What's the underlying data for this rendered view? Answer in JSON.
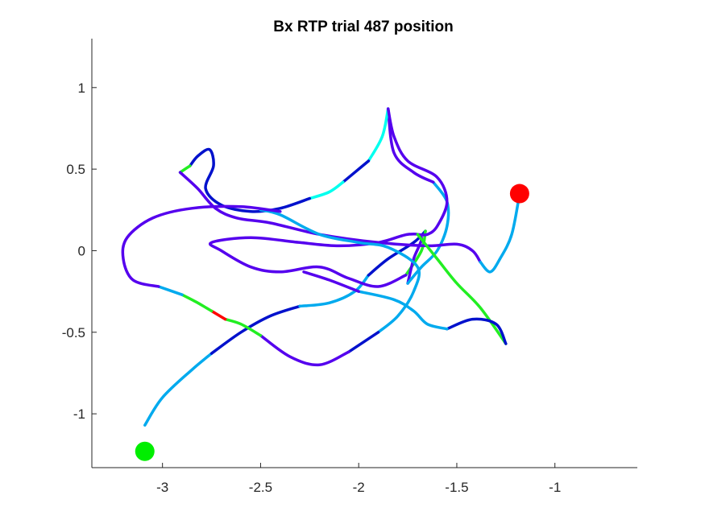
{
  "chart_data": {
    "type": "line",
    "title": "Bx  RTP trial 487 position",
    "xlabel": "",
    "ylabel": "",
    "xlim": [
      -3.36,
      -0.58
    ],
    "ylim": [
      -1.33,
      1.3
    ],
    "xticks": [
      -3,
      -2.5,
      -2,
      -1.5,
      -1
    ],
    "xtick_labels": [
      "-3",
      "-2.5",
      "-2",
      "-1.5",
      "-1"
    ],
    "yticks": [
      1,
      0.5,
      0,
      -0.5,
      -1
    ],
    "ytick_labels": [
      "1",
      "0.5",
      "0",
      "-0.5",
      "-1"
    ],
    "grid": false,
    "box": "left-bottom",
    "start_marker": {
      "x": -3.09,
      "y": -1.23,
      "color": "#00ee00"
    },
    "end_marker": {
      "x": -1.18,
      "y": 0.35,
      "color": "#ff0000"
    },
    "trajectory_segments": [
      {
        "color": "#00aaee",
        "points": [
          [
            -3.09,
            -1.07
          ],
          [
            -3.0,
            -0.9
          ],
          [
            -2.85,
            -0.73
          ],
          [
            -2.75,
            -0.63
          ]
        ]
      },
      {
        "color": "#0011cc",
        "points": [
          [
            -2.75,
            -0.63
          ],
          [
            -2.6,
            -0.5
          ],
          [
            -2.45,
            -0.4
          ],
          [
            -2.3,
            -0.34
          ]
        ]
      },
      {
        "color": "#00aaee",
        "points": [
          [
            -2.3,
            -0.34
          ],
          [
            -2.15,
            -0.32
          ],
          [
            -2.02,
            -0.25
          ],
          [
            -1.95,
            -0.15
          ]
        ]
      },
      {
        "color": "#0011cc",
        "points": [
          [
            -1.95,
            -0.15
          ],
          [
            -1.85,
            -0.05
          ],
          [
            -1.72,
            0.05
          ],
          [
            -1.66,
            0.12
          ]
        ]
      },
      {
        "color": "#22ee22",
        "points": [
          [
            -1.66,
            0.12
          ],
          [
            -1.68,
            0.0
          ],
          [
            -1.76,
            -0.15
          ]
        ]
      },
      {
        "color": "#5500ee",
        "points": [
          [
            -1.76,
            -0.15
          ],
          [
            -1.9,
            -0.22
          ],
          [
            -2.05,
            -0.17
          ],
          [
            -2.2,
            -0.1
          ],
          [
            -2.4,
            -0.13
          ],
          [
            -2.55,
            -0.1
          ],
          [
            -2.7,
            0.0
          ],
          [
            -2.75,
            0.05
          ],
          [
            -2.55,
            0.08
          ],
          [
            -2.3,
            0.05
          ],
          [
            -2.1,
            0.03
          ],
          [
            -1.9,
            0.05
          ],
          [
            -1.75,
            0.1
          ],
          [
            -1.68,
            0.08
          ],
          [
            -1.72,
            -0.05
          ],
          [
            -1.75,
            -0.2
          ]
        ]
      },
      {
        "color": "#00aaee",
        "points": [
          [
            -1.75,
            -0.2
          ],
          [
            -1.68,
            -0.1
          ],
          [
            -1.6,
            0.0
          ],
          [
            -1.55,
            0.15
          ],
          [
            -1.55,
            0.3
          ],
          [
            -1.62,
            0.42
          ]
        ]
      },
      {
        "color": "#5500ee",
        "points": [
          [
            -1.62,
            0.42
          ],
          [
            -1.72,
            0.48
          ],
          [
            -1.82,
            0.6
          ],
          [
            -1.85,
            0.87
          ]
        ]
      },
      {
        "color": "#00ffee",
        "points": [
          [
            -1.85,
            0.87
          ],
          [
            -1.88,
            0.7
          ],
          [
            -1.95,
            0.55
          ]
        ]
      },
      {
        "color": "#0011cc",
        "points": [
          [
            -1.95,
            0.55
          ],
          [
            -2.02,
            0.48
          ],
          [
            -2.08,
            0.42
          ]
        ]
      },
      {
        "color": "#00ffee",
        "points": [
          [
            -2.08,
            0.42
          ],
          [
            -2.15,
            0.36
          ],
          [
            -2.25,
            0.32
          ]
        ]
      },
      {
        "color": "#0011cc",
        "points": [
          [
            -2.25,
            0.32
          ],
          [
            -2.4,
            0.26
          ],
          [
            -2.55,
            0.24
          ],
          [
            -2.7,
            0.28
          ],
          [
            -2.78,
            0.38
          ],
          [
            -2.74,
            0.52
          ],
          [
            -2.76,
            0.62
          ],
          [
            -2.82,
            0.58
          ],
          [
            -2.86,
            0.52
          ]
        ]
      },
      {
        "color": "#22ee22",
        "points": [
          [
            -2.86,
            0.52
          ],
          [
            -2.91,
            0.48
          ]
        ]
      },
      {
        "color": "#5500ee",
        "points": [
          [
            -2.91,
            0.48
          ],
          [
            -2.82,
            0.38
          ],
          [
            -2.73,
            0.26
          ],
          [
            -2.62,
            0.2
          ],
          [
            -2.45,
            0.17
          ],
          [
            -2.2,
            0.1
          ],
          [
            -1.9,
            0.05
          ],
          [
            -1.65,
            0.03
          ],
          [
            -1.5,
            0.04
          ],
          [
            -1.42,
            0.0
          ],
          [
            -1.38,
            -0.07
          ]
        ]
      },
      {
        "color": "#00aaee",
        "points": [
          [
            -1.38,
            -0.07
          ],
          [
            -1.33,
            -0.13
          ],
          [
            -1.28,
            -0.05
          ],
          [
            -1.22,
            0.1
          ],
          [
            -1.18,
            0.35
          ]
        ]
      },
      {
        "color": "#5500ee",
        "points": [
          [
            -1.85,
            0.87
          ],
          [
            -1.82,
            0.7
          ],
          [
            -1.75,
            0.55
          ],
          [
            -1.6,
            0.45
          ],
          [
            -1.55,
            0.3
          ],
          [
            -1.6,
            0.15
          ],
          [
            -1.65,
            0.1
          ],
          [
            -1.7,
            0.1
          ]
        ]
      },
      {
        "color": "#22ee22",
        "points": [
          [
            -1.7,
            0.1
          ],
          [
            -1.6,
            -0.05
          ],
          [
            -1.5,
            -0.2
          ],
          [
            -1.38,
            -0.35
          ],
          [
            -1.25,
            -0.57
          ]
        ]
      },
      {
        "color": "#0011cc",
        "points": [
          [
            -1.25,
            -0.57
          ],
          [
            -1.3,
            -0.45
          ],
          [
            -1.42,
            -0.42
          ],
          [
            -1.55,
            -0.48
          ]
        ]
      },
      {
        "color": "#00aaee",
        "points": [
          [
            -1.55,
            -0.48
          ],
          [
            -1.65,
            -0.45
          ],
          [
            -1.72,
            -0.37
          ],
          [
            -1.82,
            -0.3
          ],
          [
            -2.0,
            -0.25
          ]
        ]
      },
      {
        "color": "#5500ee",
        "points": [
          [
            -2.0,
            -0.25
          ],
          [
            -2.15,
            -0.18
          ],
          [
            -2.28,
            -0.13
          ]
        ]
      },
      {
        "color": "#00aaee",
        "points": [
          [
            -2.5,
            0.25
          ],
          [
            -2.4,
            0.22
          ],
          [
            -2.2,
            0.1
          ],
          [
            -2.0,
            0.05
          ],
          [
            -1.85,
            0.02
          ],
          [
            -1.7,
            -0.1
          ],
          [
            -1.72,
            -0.25
          ],
          [
            -1.8,
            -0.4
          ],
          [
            -1.9,
            -0.5
          ]
        ]
      },
      {
        "color": "#0011cc",
        "points": [
          [
            -1.9,
            -0.5
          ],
          [
            -2.05,
            -0.62
          ]
        ]
      },
      {
        "color": "#5500ee",
        "points": [
          [
            -2.05,
            -0.62
          ],
          [
            -2.2,
            -0.7
          ],
          [
            -2.35,
            -0.65
          ],
          [
            -2.5,
            -0.52
          ]
        ]
      },
      {
        "color": "#22ee22",
        "points": [
          [
            -2.5,
            -0.52
          ],
          [
            -2.6,
            -0.45
          ],
          [
            -2.68,
            -0.42
          ]
        ]
      },
      {
        "color": "#ff0000",
        "points": [
          [
            -2.68,
            -0.42
          ],
          [
            -2.75,
            -0.37
          ]
        ]
      },
      {
        "color": "#22ee22",
        "points": [
          [
            -2.75,
            -0.37
          ],
          [
            -2.82,
            -0.32
          ],
          [
            -2.9,
            -0.27
          ]
        ]
      },
      {
        "color": "#00aaee",
        "points": [
          [
            -2.9,
            -0.27
          ],
          [
            -3.02,
            -0.22
          ]
        ]
      },
      {
        "color": "#5500ee",
        "points": [
          [
            -3.02,
            -0.22
          ],
          [
            -3.15,
            -0.18
          ],
          [
            -3.2,
            -0.05
          ],
          [
            -3.18,
            0.08
          ],
          [
            -3.05,
            0.2
          ],
          [
            -2.85,
            0.26
          ],
          [
            -2.6,
            0.27
          ],
          [
            -2.4,
            0.24
          ]
        ]
      }
    ]
  }
}
